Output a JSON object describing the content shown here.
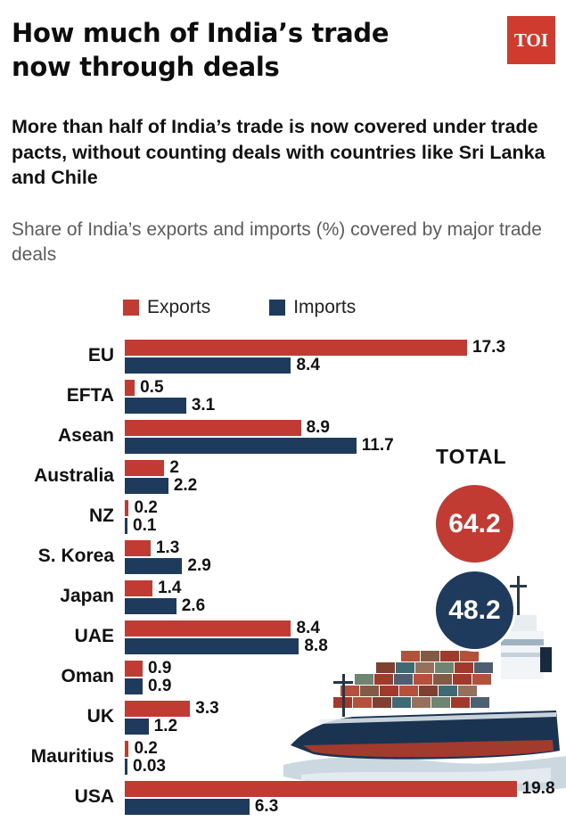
{
  "brand": {
    "logo_text": "TOI",
    "logo_bg": "#d13b2e"
  },
  "header": {
    "title_line1": "How much of India’s trade",
    "title_line2": "now through deals",
    "subtitle": "More than half of India’s trade is now covered under trade pacts, without counting deals with countries like Sri Lanka and Chile",
    "description": "Share of India’s exports and imports (%) covered by major trade deals"
  },
  "legend": {
    "exports_label": "Exports",
    "imports_label": "Imports"
  },
  "totals": {
    "label": "TOTAL",
    "exports_total": "64.2",
    "imports_total": "48.2"
  },
  "colors": {
    "exports": "#c23b33",
    "imports": "#1e3a5c"
  },
  "chart_data": {
    "type": "bar",
    "orientation": "horizontal",
    "title": "Share of India’s exports and imports (%) covered by major trade deals",
    "categories": [
      "EU",
      "EFTA",
      "Asean",
      "Australia",
      "NZ",
      "S. Korea",
      "Japan",
      "UAE",
      "Oman",
      "UK",
      "Mauritius",
      "USA"
    ],
    "series": [
      {
        "name": "Exports",
        "color": "#c23b33",
        "values": [
          17.3,
          0.5,
          8.9,
          2,
          0.2,
          1.3,
          1.4,
          8.4,
          0.9,
          3.3,
          0.2,
          19.8
        ],
        "labels": [
          "17.3",
          "0.5",
          "8.9",
          "2",
          "0.2",
          "1.3",
          "1.4",
          "8.4",
          "0.9",
          "3.3",
          "0.2",
          "19.8"
        ]
      },
      {
        "name": "Imports",
        "color": "#1e3a5c",
        "values": [
          8.4,
          3.1,
          11.7,
          2.2,
          0.1,
          2.9,
          2.6,
          8.8,
          0.9,
          1.2,
          0.03,
          6.3
        ],
        "labels": [
          "8.4",
          "3.1",
          "11.7",
          "2.2",
          "0.1",
          "2.9",
          "2.6",
          "8.8",
          "0.9",
          "1.2",
          "0.03",
          "6.3"
        ]
      }
    ],
    "xlim": [
      0,
      20
    ],
    "legend_position": "top",
    "totals": {
      "Exports": 64.2,
      "Imports": 48.2
    }
  }
}
